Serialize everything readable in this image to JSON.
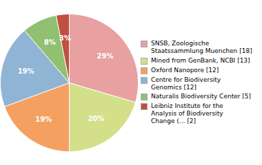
{
  "chart_data": {
    "type": "pie",
    "categories": [
      "SNSB, Zoologische\nStaatssammlung Muenchen [18]",
      "Mined from GenBank, NCBI [13]",
      "Oxford Nanopore [12]",
      "Centre for Biodiversity\nGenomics [12]",
      "Naturalis Biodiversity Center [5]",
      "Leibniz Institute for the\nAnalysis of Biodiversity\nChange (... [2]"
    ],
    "values": [
      29,
      20,
      19,
      19,
      8,
      3
    ],
    "value_labels": [
      "29%",
      "20%",
      "19%",
      "19%",
      "8%",
      "3%"
    ],
    "colors": [
      "#e8a0a0",
      "#d4df8a",
      "#f4a060",
      "#90b4d4",
      "#90c070",
      "#c05040"
    ],
    "data_labels": true,
    "legend": "right"
  }
}
